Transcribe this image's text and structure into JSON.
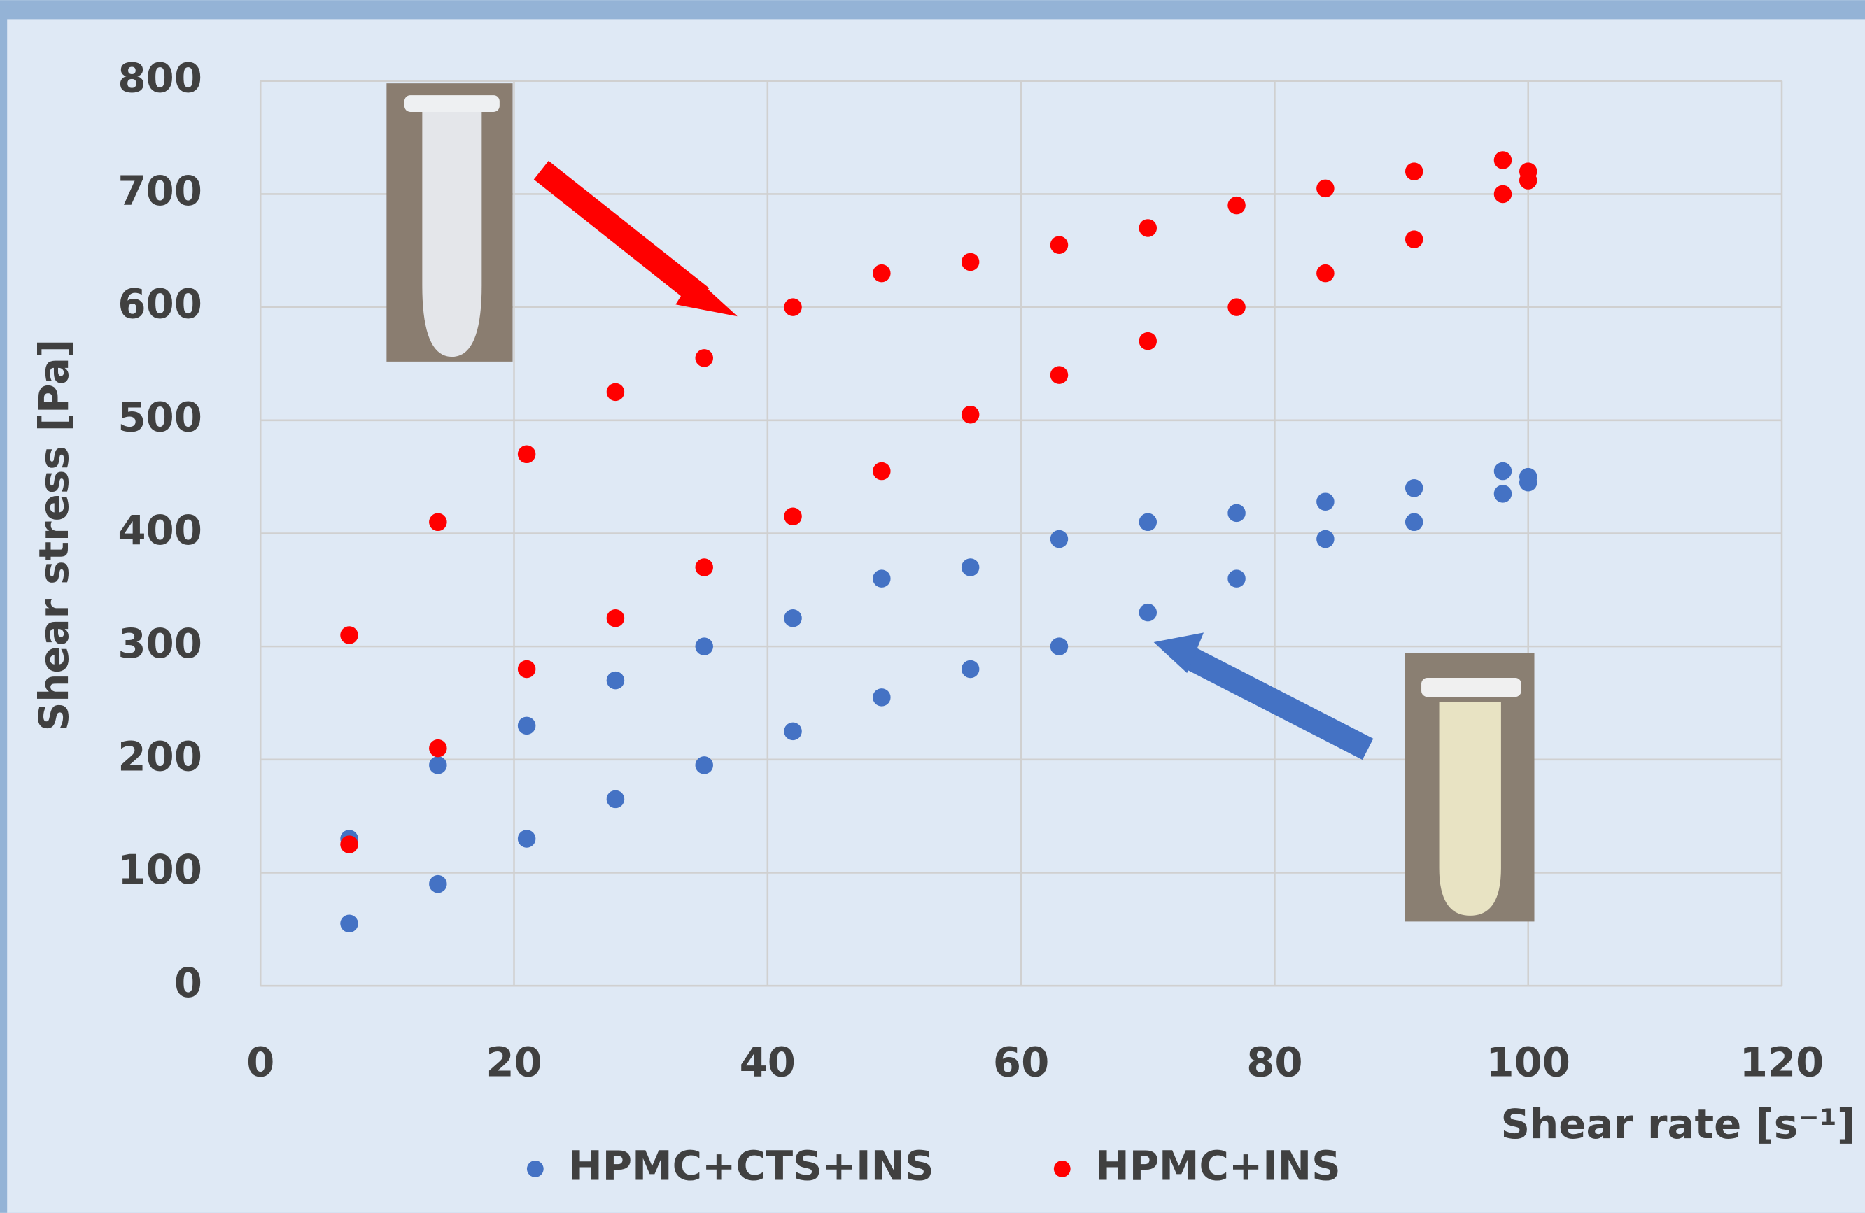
{
  "chart_data": {
    "type": "scatter",
    "xlabel": "Shear rate [s⁻¹]",
    "ylabel": "Shear stress [Pa]",
    "xlim": [
      0,
      120
    ],
    "xticks": [
      0,
      20,
      40,
      60,
      80,
      100,
      120
    ],
    "ylim": [
      0,
      800
    ],
    "yticks": [
      0,
      100,
      200,
      300,
      400,
      500,
      600,
      700,
      800
    ],
    "grid": true,
    "legend": "bottom",
    "series": [
      {
        "name": "HPMC+CTS+INS",
        "color": "#4472c4",
        "x": [
          7,
          14,
          21,
          28,
          35,
          42,
          49,
          56,
          63,
          70,
          77,
          84,
          91,
          98,
          100,
          7,
          14,
          21,
          28,
          35,
          42,
          49,
          56,
          63,
          70,
          77,
          84,
          91,
          98,
          100
        ],
        "values": [
          130,
          195,
          230,
          270,
          300,
          325,
          360,
          370,
          395,
          410,
          418,
          428,
          440,
          455,
          450,
          55,
          90,
          130,
          165,
          195,
          225,
          255,
          280,
          300,
          330,
          360,
          395,
          410,
          435,
          445
        ]
      },
      {
        "name": "HPMC+INS",
        "color": "#ff0000",
        "x": [
          7,
          14,
          21,
          28,
          35,
          42,
          49,
          56,
          63,
          70,
          77,
          84,
          91,
          98,
          100,
          7,
          14,
          21,
          28,
          35,
          42,
          49,
          56,
          63,
          70,
          77,
          84,
          91,
          98,
          100
        ],
        "values": [
          310,
          410,
          470,
          525,
          555,
          600,
          630,
          640,
          655,
          670,
          690,
          705,
          720,
          730,
          720,
          125,
          210,
          280,
          325,
          370,
          415,
          455,
          505,
          540,
          570,
          600,
          630,
          660,
          700,
          712
        ]
      }
    ]
  }
}
